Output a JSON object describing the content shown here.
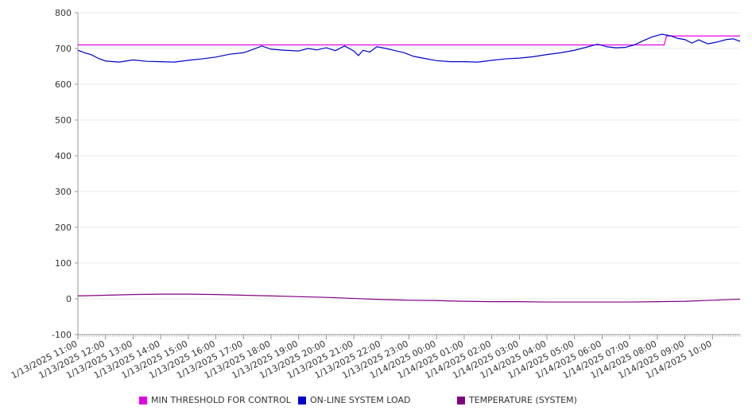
{
  "chart_data": {
    "type": "line",
    "ylim": [
      -100,
      800
    ],
    "yticks": [
      -100,
      0,
      100,
      200,
      300,
      400,
      500,
      600,
      700,
      800
    ],
    "x_start": "1/13/2025 11:00",
    "x_end": "1/14/2025 11:00",
    "xtick_labels": [
      "1/13/2025 11:00",
      "1/13/2025 12:00",
      "1/13/2025 13:00",
      "1/13/2025 14:00",
      "1/13/2025 15:00",
      "1/13/2025 16:00",
      "1/13/2025 17:00",
      "1/13/2025 18:00",
      "1/13/2025 19:00",
      "1/13/2025 20:00",
      "1/13/2025 21:00",
      "1/13/2025 22:00",
      "1/13/2025 23:00",
      "1/14/2025 00:00",
      "1/14/2025 01:00",
      "1/14/2025 02:00",
      "1/14/2025 03:00",
      "1/14/2025 04:00",
      "1/14/2025 05:00",
      "1/14/2025 06:00",
      "1/14/2025 07:00",
      "1/14/2025 08:00",
      "1/14/2025 09:00",
      "1/14/2025 10:00"
    ],
    "grid": true,
    "legend_position": "bottom",
    "series": [
      {
        "name": "MIN THRESHOLD FOR CONTROL",
        "color": "#e600e6",
        "points": [
          [
            "1/13/2025 11:00",
            710
          ],
          [
            "1/14/2025 08:15",
            710
          ],
          [
            "1/14/2025 08:20",
            735
          ],
          [
            "1/14/2025 11:00",
            735
          ]
        ]
      },
      {
        "name": "ON-LINE SYSTEM LOAD",
        "color": "#0000cc",
        "points": [
          [
            "1/13/2025 11:00",
            695
          ],
          [
            "1/13/2025 11:15",
            688
          ],
          [
            "1/13/2025 11:30",
            682
          ],
          [
            "1/13/2025 11:45",
            672
          ],
          [
            "1/13/2025 12:00",
            665
          ],
          [
            "1/13/2025 12:30",
            662
          ],
          [
            "1/13/2025 13:00",
            668
          ],
          [
            "1/13/2025 13:30",
            664
          ],
          [
            "1/13/2025 14:00",
            663
          ],
          [
            "1/13/2025 14:30",
            662
          ],
          [
            "1/13/2025 15:00",
            667
          ],
          [
            "1/13/2025 15:30",
            671
          ],
          [
            "1/13/2025 16:00",
            676
          ],
          [
            "1/13/2025 16:30",
            684
          ],
          [
            "1/13/2025 17:00",
            688
          ],
          [
            "1/13/2025 17:20",
            697
          ],
          [
            "1/13/2025 17:40",
            707
          ],
          [
            "1/13/2025 18:00",
            698
          ],
          [
            "1/13/2025 18:30",
            695
          ],
          [
            "1/13/2025 19:00",
            693
          ],
          [
            "1/13/2025 19:20",
            700
          ],
          [
            "1/13/2025 19:40",
            696
          ],
          [
            "1/13/2025 20:00",
            702
          ],
          [
            "1/13/2025 20:20",
            694
          ],
          [
            "1/13/2025 20:40",
            707
          ],
          [
            "1/13/2025 21:00",
            693
          ],
          [
            "1/13/2025 21:10",
            680
          ],
          [
            "1/13/2025 21:20",
            695
          ],
          [
            "1/13/2025 21:35",
            690
          ],
          [
            "1/13/2025 21:50",
            705
          ],
          [
            "1/13/2025 22:10",
            700
          ],
          [
            "1/13/2025 22:30",
            694
          ],
          [
            "1/13/2025 22:50",
            688
          ],
          [
            "1/13/2025 23:10",
            678
          ],
          [
            "1/13/2025 23:30",
            673
          ],
          [
            "1/14/2025 00:00",
            666
          ],
          [
            "1/14/2025 00:30",
            663
          ],
          [
            "1/14/2025 01:00",
            663
          ],
          [
            "1/14/2025 01:30",
            662
          ],
          [
            "1/14/2025 02:00",
            667
          ],
          [
            "1/14/2025 02:30",
            671
          ],
          [
            "1/14/2025 03:00",
            673
          ],
          [
            "1/14/2025 03:30",
            677
          ],
          [
            "1/14/2025 04:00",
            683
          ],
          [
            "1/14/2025 04:30",
            688
          ],
          [
            "1/14/2025 05:00",
            695
          ],
          [
            "1/14/2025 05:30",
            705
          ],
          [
            "1/14/2025 05:50",
            712
          ],
          [
            "1/14/2025 06:10",
            705
          ],
          [
            "1/14/2025 06:30",
            702
          ],
          [
            "1/14/2025 06:50",
            703
          ],
          [
            "1/14/2025 07:10",
            710
          ],
          [
            "1/14/2025 07:30",
            722
          ],
          [
            "1/14/2025 07:50",
            733
          ],
          [
            "1/14/2025 08:10",
            740
          ],
          [
            "1/14/2025 08:30",
            735
          ],
          [
            "1/14/2025 08:45",
            728
          ],
          [
            "1/14/2025 09:00",
            725
          ],
          [
            "1/14/2025 09:15",
            715
          ],
          [
            "1/14/2025 09:30",
            724
          ],
          [
            "1/14/2025 09:50",
            713
          ],
          [
            "1/14/2025 10:10",
            718
          ],
          [
            "1/14/2025 10:30",
            725
          ],
          [
            "1/14/2025 10:45",
            727
          ],
          [
            "1/14/2025 11:00",
            720
          ]
        ]
      },
      {
        "name": "TEMPERATURE (SYSTEM)",
        "color": "#800080",
        "points": [
          [
            "1/13/2025 11:00",
            8
          ],
          [
            "1/13/2025 12:00",
            10
          ],
          [
            "1/13/2025 13:00",
            12
          ],
          [
            "1/13/2025 14:00",
            13
          ],
          [
            "1/13/2025 15:00",
            13
          ],
          [
            "1/13/2025 16:00",
            12
          ],
          [
            "1/13/2025 17:00",
            10
          ],
          [
            "1/13/2025 18:00",
            8
          ],
          [
            "1/13/2025 19:00",
            6
          ],
          [
            "1/13/2025 20:00",
            4
          ],
          [
            "1/13/2025 21:00",
            1
          ],
          [
            "1/13/2025 22:00",
            -2
          ],
          [
            "1/13/2025 23:00",
            -4
          ],
          [
            "1/14/2025 00:00",
            -5
          ],
          [
            "1/14/2025 01:00",
            -7
          ],
          [
            "1/14/2025 02:00",
            -8
          ],
          [
            "1/14/2025 03:00",
            -8
          ],
          [
            "1/14/2025 04:00",
            -9
          ],
          [
            "1/14/2025 05:00",
            -9
          ],
          [
            "1/14/2025 06:00",
            -9
          ],
          [
            "1/14/2025 07:00",
            -9
          ],
          [
            "1/14/2025 08:00",
            -8
          ],
          [
            "1/14/2025 09:00",
            -7
          ],
          [
            "1/14/2025 10:00",
            -4
          ],
          [
            "1/14/2025 11:00",
            -1
          ]
        ]
      }
    ]
  }
}
